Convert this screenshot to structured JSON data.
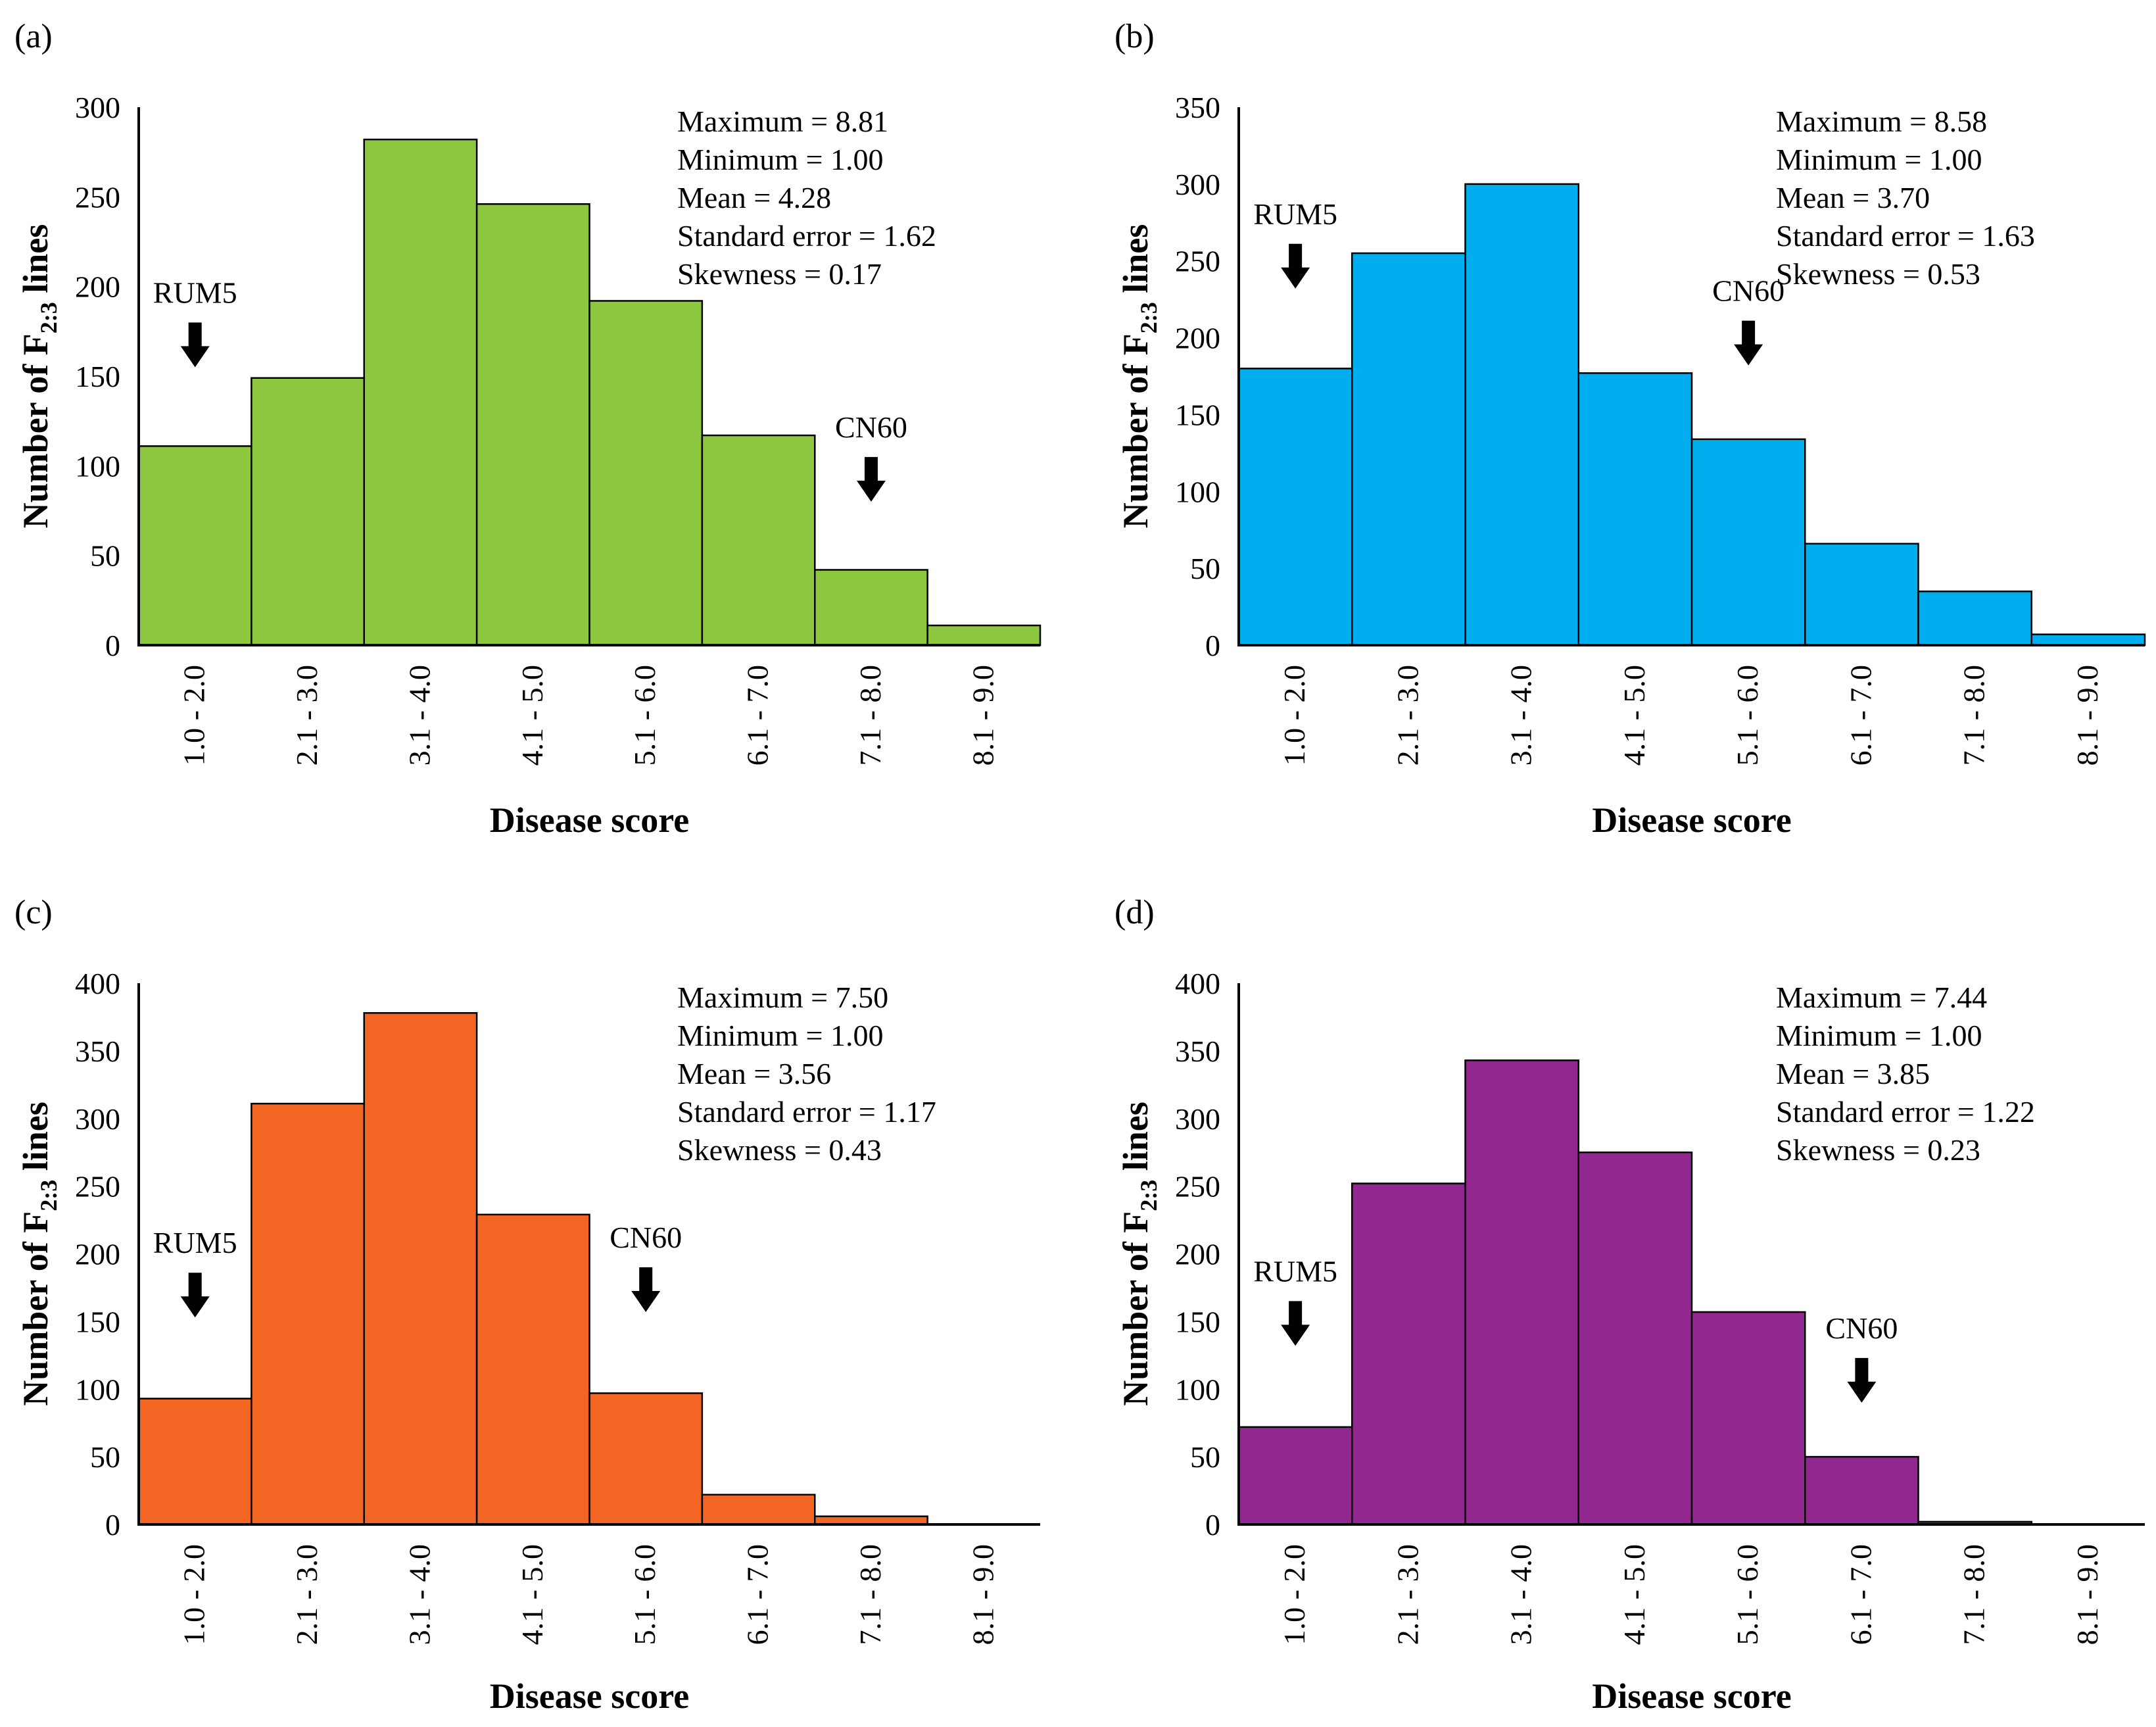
{
  "colors": {
    "a": "#8dc63f",
    "b": "#00aeef",
    "c": "#f26522",
    "d": "#92278f"
  },
  "chart_data": [
    {
      "id": "a",
      "panel_label": "(a)",
      "type": "bar",
      "categories": [
        "1.0 - 2.0",
        "2.1 - 3.0",
        "3.1 - 4.0",
        "4.1 - 5.0",
        "5.1 - 6.0",
        "6.1 - 7.0",
        "7.1 - 8.0",
        "8.1 - 9.0"
      ],
      "values": [
        111,
        149,
        282,
        246,
        192,
        117,
        42,
        11
      ],
      "ylim": [
        0,
        300
      ],
      "yticks": [
        0,
        50,
        100,
        150,
        200,
        250,
        300
      ],
      "xlabel": "Disease score",
      "ylabel_main": "Number of F",
      "ylabel_sub": "2:3",
      "ylabel_tail": " lines",
      "stats": [
        "Maximum = 8.81",
        "Minimum = 1.00",
        "Mean = 4.28",
        "Standard error = 1.62",
        "Skewness = 0.17"
      ],
      "markers": [
        {
          "label": "RUM5",
          "category_index": 0,
          "arrow_value": 155
        },
        {
          "label": "CN60",
          "category_index": 6,
          "arrow_value": 80
        }
      ]
    },
    {
      "id": "b",
      "panel_label": "(b)",
      "type": "bar",
      "categories": [
        "1.0 - 2.0",
        "2.1 - 3.0",
        "3.1 - 4.0",
        "4.1 - 5.0",
        "5.1 - 6.0",
        "6.1 - 7.0",
        "7.1 - 8.0",
        "8.1 - 9.0"
      ],
      "values": [
        180,
        255,
        300,
        177,
        134,
        66,
        35,
        7
      ],
      "ylim": [
        0,
        350
      ],
      "yticks": [
        0,
        50,
        100,
        150,
        200,
        250,
        300,
        350
      ],
      "xlabel": "Disease score",
      "ylabel_main": "Number of F",
      "ylabel_sub": "2:3",
      "ylabel_tail": " lines",
      "stats": [
        "Maximum = 8.58",
        "Minimum = 1.00",
        "Mean = 3.70",
        "Standard error = 1.63",
        "Skewness = 0.53"
      ],
      "markers": [
        {
          "label": "RUM5",
          "category_index": 0,
          "arrow_value": 232
        },
        {
          "label": "CN60",
          "category_index": 4,
          "arrow_value": 182
        }
      ]
    },
    {
      "id": "c",
      "panel_label": "(c)",
      "type": "bar",
      "categories": [
        "1.0 - 2.0",
        "2.1 - 3.0",
        "3.1 - 4.0",
        "4.1 - 5.0",
        "5.1 - 6.0",
        "6.1 - 7.0",
        "7.1 - 8.0",
        "8.1 - 9.0"
      ],
      "values": [
        93,
        311,
        378,
        229,
        97,
        22,
        6,
        0
      ],
      "ylim": [
        0,
        400
      ],
      "yticks": [
        0,
        50,
        100,
        150,
        200,
        250,
        300,
        350,
        400
      ],
      "xlabel": "Disease score",
      "ylabel_main": "Number of F",
      "ylabel_sub": "2:3",
      "ylabel_tail": " lines",
      "stats": [
        "Maximum = 7.50",
        "Minimum = 1.00",
        "Mean = 3.56",
        "Standard error = 1.17",
        "Skewness = 0.43"
      ],
      "markers": [
        {
          "label": "RUM5",
          "category_index": 0,
          "arrow_value": 153
        },
        {
          "label": "CN60",
          "category_index": 4,
          "arrow_value": 157
        }
      ]
    },
    {
      "id": "d",
      "panel_label": "(d)",
      "type": "bar",
      "categories": [
        "1.0 - 2.0",
        "2.1 - 3.0",
        "3.1 - 4.0",
        "4.1 - 5.0",
        "5.1 - 6.0",
        "6.1 - 7.0",
        "7.1 - 8.0",
        "8.1 - 9.0"
      ],
      "values": [
        72,
        252,
        343,
        275,
        157,
        50,
        2,
        0
      ],
      "ylim": [
        0,
        400
      ],
      "yticks": [
        0,
        50,
        100,
        150,
        200,
        250,
        300,
        350,
        400
      ],
      "xlabel": "Disease score",
      "ylabel_main": "Number of F",
      "ylabel_sub": "2:3",
      "ylabel_tail": " lines",
      "stats": [
        "Maximum = 7.44",
        "Minimum = 1.00",
        "Mean = 3.85",
        "Standard error = 1.22",
        "Skewness = 0.23"
      ],
      "markers": [
        {
          "label": "RUM5",
          "category_index": 0,
          "arrow_value": 132
        },
        {
          "label": "CN60",
          "category_index": 5,
          "arrow_value": 90
        }
      ]
    }
  ]
}
